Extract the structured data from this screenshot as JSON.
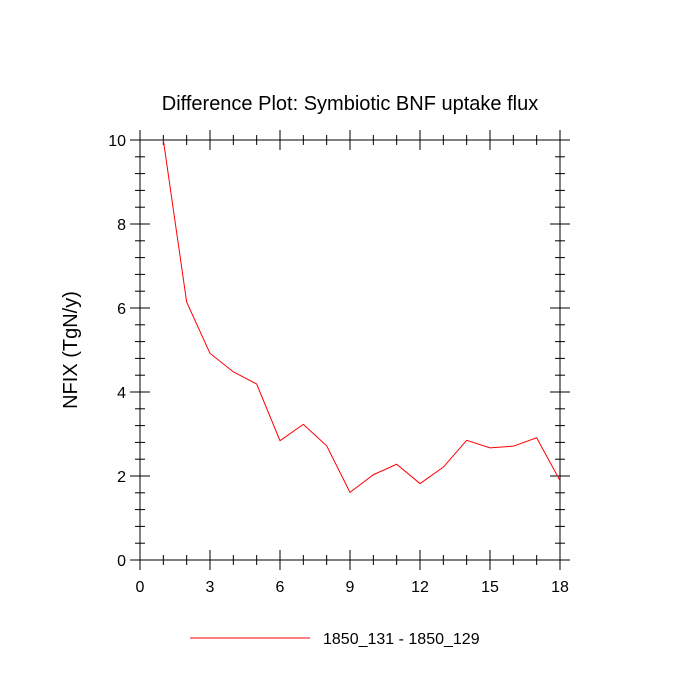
{
  "chart_data": {
    "type": "line",
    "title": "Difference Plot: Symbiotic BNF uptake flux",
    "xlabel": "",
    "ylabel": "NFIX  (TgN/y)",
    "xlim": [
      0,
      18
    ],
    "ylim": [
      0,
      10
    ],
    "x_ticks": [
      0,
      3,
      6,
      9,
      12,
      15,
      18
    ],
    "x_tick_labels": [
      "0",
      "3",
      "6",
      "9",
      "12",
      "15",
      "18"
    ],
    "y_ticks": [
      0,
      2,
      4,
      6,
      8,
      10
    ],
    "y_tick_labels": [
      "0",
      "2",
      "4",
      "6",
      "8",
      "10"
    ],
    "grid": false,
    "legend_position": "bottom-center",
    "series": [
      {
        "name": "1850_131 - 1850_129",
        "color": "#ff0000",
        "x": [
          1,
          2,
          3,
          4,
          5,
          6,
          7,
          8,
          9,
          10,
          11,
          12,
          13,
          14,
          15,
          16,
          17,
          18
        ],
        "y": [
          10.0,
          6.14,
          4.92,
          4.48,
          4.19,
          2.84,
          3.23,
          2.72,
          1.61,
          2.03,
          2.28,
          1.82,
          2.21,
          2.85,
          2.67,
          2.71,
          2.91,
          1.89
        ]
      }
    ]
  }
}
